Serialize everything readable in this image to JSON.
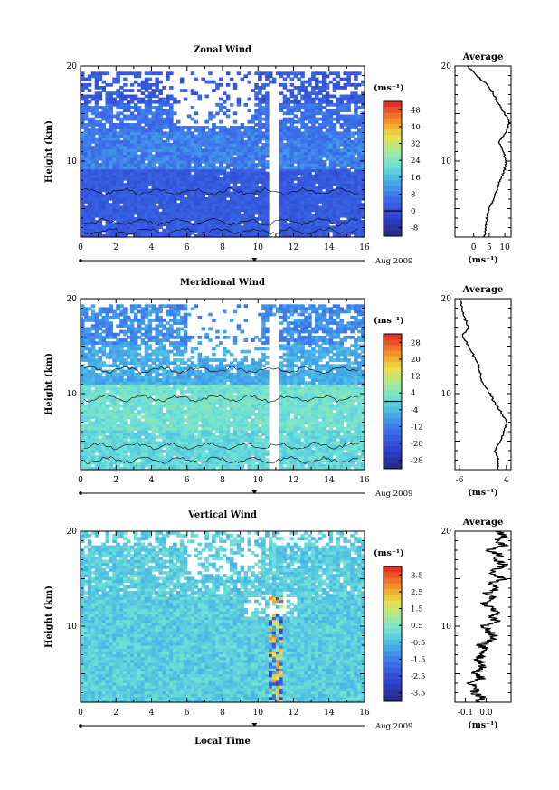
{
  "figure": {
    "xlabel_bottom": "Local Time",
    "date_label": "Aug 2009",
    "ylabel": "Height (km)",
    "avg_xlabel": "(ms⁻¹)",
    "cbar_unit": "(ms⁻¹)"
  },
  "chart_data": [
    {
      "type": "heatmap",
      "id": "zonal",
      "title": "Zonal Wind",
      "xlabel": "Local Time",
      "ylabel": "Height (km)",
      "xlim": [
        0,
        16
      ],
      "ylim": [
        2,
        20
      ],
      "xticks": [
        "0",
        "2",
        "4",
        "6",
        "8",
        "10",
        "12",
        "14",
        "16"
      ],
      "yticks": [
        "10",
        "20"
      ],
      "colorbar": {
        "unit": "(ms⁻¹)",
        "ticks": [
          "48",
          "40",
          "32",
          "24",
          "16",
          "8",
          "0",
          "-8"
        ],
        "min": -12,
        "max": 52
      },
      "gap_time": [
        10.6,
        11.1
      ],
      "profile": {
        "title": "Average",
        "xlim": [
          -6,
          12
        ],
        "xticks": [
          "0",
          "5",
          "10"
        ],
        "heights": [
          2,
          3,
          4,
          5,
          6,
          7,
          8,
          9,
          10,
          11,
          12,
          13,
          14,
          15,
          16,
          17,
          18,
          19,
          20
        ],
        "values": [
          3.5,
          4.0,
          4.2,
          5.0,
          6.5,
          7.5,
          8.5,
          9.8,
          10.5,
          9.5,
          8.0,
          10.5,
          11.5,
          10.0,
          8.0,
          6.5,
          4.5,
          1.0,
          -2.0
        ]
      }
    },
    {
      "type": "heatmap",
      "id": "meridional",
      "title": "Meridional Wind",
      "xlabel": "Local Time",
      "ylabel": "Height (km)",
      "xlim": [
        0,
        16
      ],
      "ylim": [
        2,
        20
      ],
      "xticks": [
        "0",
        "2",
        "4",
        "6",
        "8",
        "10",
        "12",
        "14",
        "16"
      ],
      "yticks": [
        "10",
        "20"
      ],
      "colorbar": {
        "unit": "(ms⁻¹)",
        "ticks": [
          "28",
          "20",
          "12",
          "4",
          "-4",
          "-12",
          "-20",
          "-28"
        ],
        "min": -32,
        "max": 32
      },
      "gap_time": [
        10.6,
        11.1
      ],
      "profile": {
        "title": "Average",
        "xlim": [
          -7,
          5
        ],
        "xticks": [
          "-6",
          "4"
        ],
        "heights": [
          2,
          3,
          4,
          5,
          6,
          7,
          8,
          9,
          10,
          11,
          12,
          13,
          14,
          15,
          16,
          17,
          18,
          19,
          20
        ],
        "values": [
          2.0,
          2.3,
          1.5,
          2.8,
          3.5,
          4.0,
          3.0,
          1.5,
          0.5,
          -1.0,
          -1.5,
          -2.0,
          -3.0,
          -4.0,
          -5.5,
          -4.0,
          -5.0,
          -5.5,
          -6.0
        ]
      }
    },
    {
      "type": "heatmap",
      "id": "vertical",
      "title": "Vertical Wind",
      "xlabel": "Local Time",
      "ylabel": "Height (km)",
      "xlim": [
        0,
        16
      ],
      "ylim": [
        2,
        20
      ],
      "xticks": [
        "0",
        "2",
        "4",
        "6",
        "8",
        "10",
        "12",
        "14",
        "16"
      ],
      "yticks": [
        "10",
        "20"
      ],
      "colorbar": {
        "unit": "(ms⁻¹)",
        "ticks": [
          "3.5",
          "2.5",
          "1.5",
          "0.5",
          "-0.5",
          "-1.5",
          "-2.5",
          "-3.5"
        ],
        "min": -4,
        "max": 4
      },
      "gap_time": [],
      "profile": {
        "title": "Average",
        "xlim": [
          -0.15,
          0.12
        ],
        "xticks": [
          "-0.1",
          "0.0"
        ],
        "heights": [
          2,
          2.5,
          3,
          3.5,
          4,
          4.5,
          5,
          5.5,
          6,
          6.5,
          7,
          7.5,
          8,
          8.5,
          9,
          9.5,
          10,
          10.5,
          11,
          11.5,
          12,
          12.5,
          13,
          13.5,
          14,
          14.5,
          15,
          15.5,
          16,
          16.5,
          17,
          17.5,
          18,
          18.5,
          19,
          19.5,
          20
        ],
        "values": [
          -0.05,
          -0.02,
          -0.06,
          -0.03,
          -0.08,
          -0.02,
          -0.05,
          -0.03,
          -0.01,
          -0.04,
          -0.02,
          0.0,
          -0.03,
          0.02,
          0.04,
          0.01,
          -0.02,
          0.05,
          0.03,
          0.06,
          0.02,
          -0.01,
          0.04,
          0.0,
          0.06,
          0.02,
          0.08,
          0.03,
          0.05,
          0.09,
          0.04,
          0.07,
          0.02,
          0.08,
          0.05,
          0.09,
          0.06
        ]
      }
    }
  ]
}
